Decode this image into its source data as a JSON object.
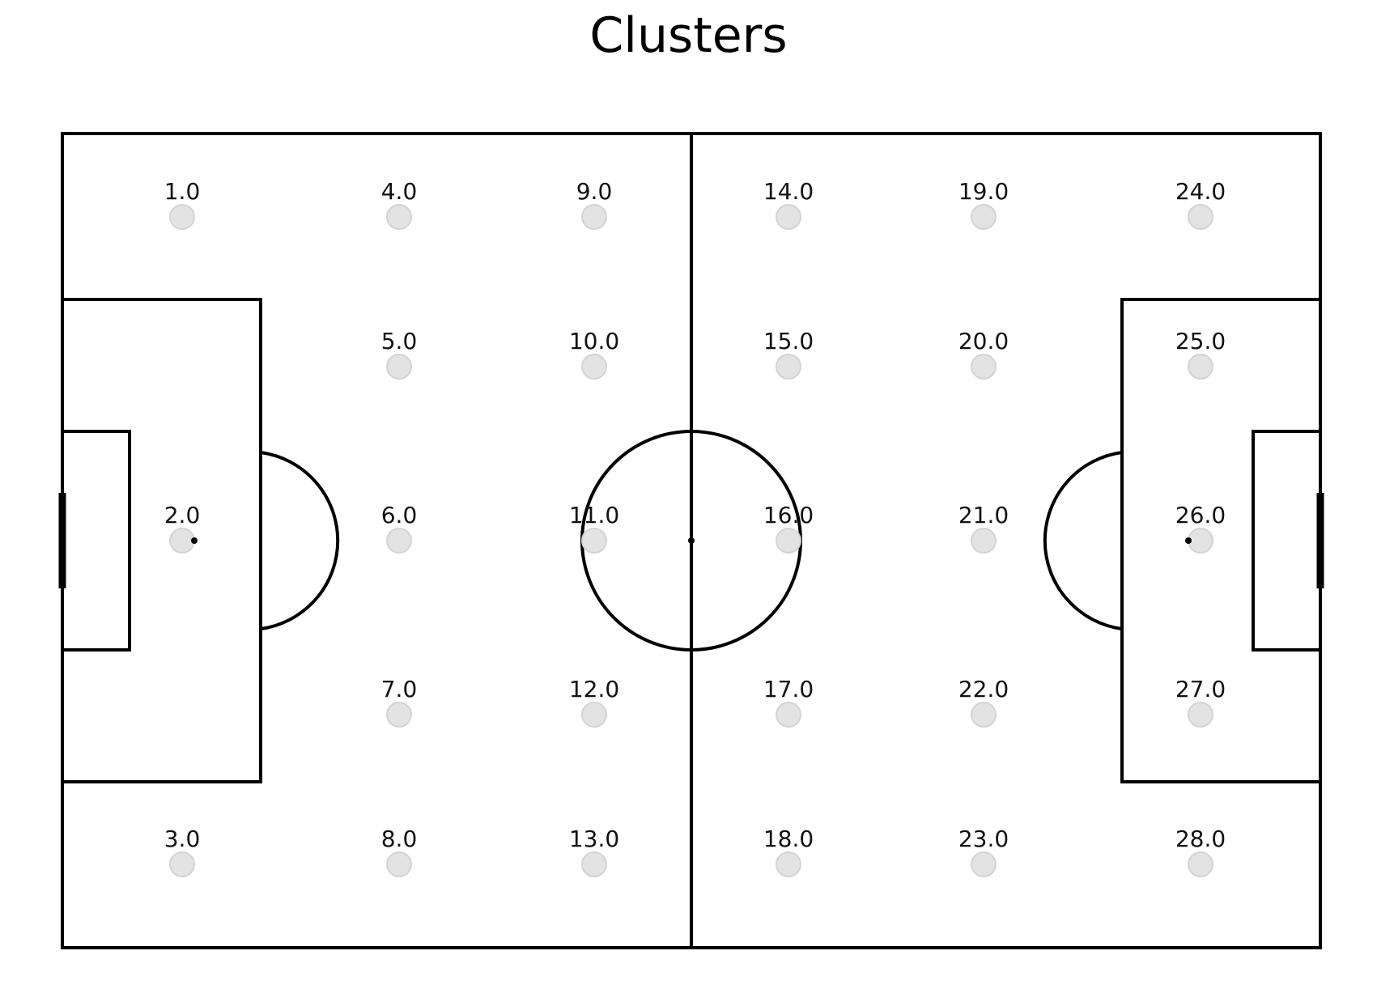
{
  "title": "Clusters",
  "colors": {
    "pitch_lines": "#000000",
    "cluster_marker_fill": "#e3e3e3",
    "cluster_marker_stroke": "#d4d4d4",
    "background": "#ffffff"
  },
  "clusters": [
    {
      "label": "1.0",
      "col": 0,
      "row": 0
    },
    {
      "label": "2.0",
      "col": 0,
      "row": 2
    },
    {
      "label": "3.0",
      "col": 0,
      "row": 4
    },
    {
      "label": "4.0",
      "col": 1,
      "row": 0
    },
    {
      "label": "5.0",
      "col": 1,
      "row": 1
    },
    {
      "label": "6.0",
      "col": 1,
      "row": 2
    },
    {
      "label": "7.0",
      "col": 1,
      "row": 3
    },
    {
      "label": "8.0",
      "col": 1,
      "row": 4
    },
    {
      "label": "9.0",
      "col": 2,
      "row": 0
    },
    {
      "label": "10.0",
      "col": 2,
      "row": 1
    },
    {
      "label": "11.0",
      "col": 2,
      "row": 2
    },
    {
      "label": "12.0",
      "col": 2,
      "row": 3
    },
    {
      "label": "13.0",
      "col": 2,
      "row": 4
    },
    {
      "label": "14.0",
      "col": 3,
      "row": 0
    },
    {
      "label": "15.0",
      "col": 3,
      "row": 1
    },
    {
      "label": "16.0",
      "col": 3,
      "row": 2
    },
    {
      "label": "17.0",
      "col": 3,
      "row": 3
    },
    {
      "label": "18.0",
      "col": 3,
      "row": 4
    },
    {
      "label": "19.0",
      "col": 4,
      "row": 0
    },
    {
      "label": "20.0",
      "col": 4,
      "row": 1
    },
    {
      "label": "21.0",
      "col": 4,
      "row": 2
    },
    {
      "label": "22.0",
      "col": 4,
      "row": 3
    },
    {
      "label": "23.0",
      "col": 4,
      "row": 4
    },
    {
      "label": "24.0",
      "col": 5,
      "row": 0
    },
    {
      "label": "25.0",
      "col": 5,
      "row": 1
    },
    {
      "label": "26.0",
      "col": 5,
      "row": 2
    },
    {
      "label": "27.0",
      "col": 5,
      "row": 3
    },
    {
      "label": "28.0",
      "col": 5,
      "row": 4
    }
  ]
}
